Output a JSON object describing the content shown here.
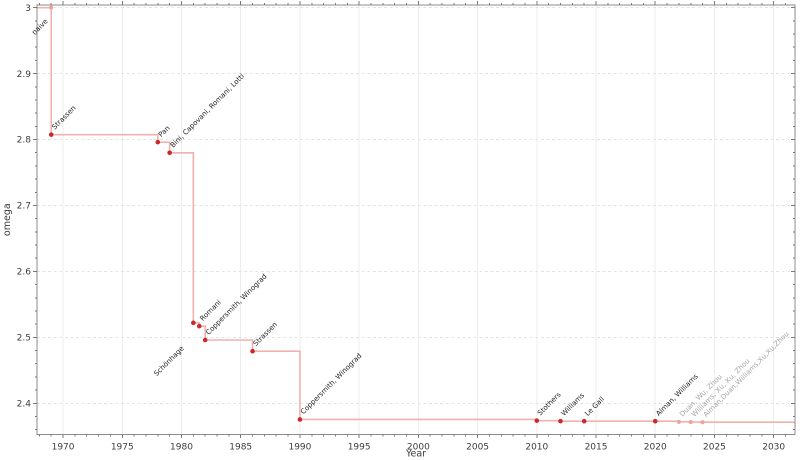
{
  "chart_data": {
    "type": "line",
    "step_style": "post",
    "title": "",
    "xlabel": "Year",
    "ylabel": "omega",
    "xlim": [
      1967.8,
      2031.8
    ],
    "ylim": [
      2.353,
      3.004
    ],
    "x_major_ticks": [
      1970,
      1975,
      1980,
      1985,
      1990,
      1995,
      2000,
      2005,
      2010,
      2015,
      2020,
      2025,
      2030
    ],
    "x_minor_step": 1,
    "y_major_ticks": [
      {
        "value": 2.4,
        "label": "2.4"
      },
      {
        "value": 2.5,
        "label": "2.5"
      },
      {
        "value": 2.6,
        "label": "2.6"
      },
      {
        "value": 2.7,
        "label": "2.7"
      },
      {
        "value": 2.8,
        "label": "2.8"
      },
      {
        "value": 2.9,
        "label": "2.9"
      },
      {
        "value": 3.0,
        "label": "3"
      }
    ],
    "y_minor_step": 0.02,
    "grid": {
      "vertical_style": "solid",
      "horizontal_style": "dashed"
    },
    "legend": "none",
    "colors": {
      "line": "#f2b1b1",
      "marker": "#cc2828",
      "muted_marker": "#eda2a2",
      "label": "#262626",
      "muted_label": "#a6a6a6",
      "grid_vertical": "#ededed",
      "grid_horizontal": "#e3e3e3",
      "spine": "#8c8c8c",
      "tick": "#7a7a7a",
      "tick_label": "#3c3c3c"
    },
    "points": [
      {
        "label": "naive",
        "year": 1969,
        "omega": 3.0,
        "muted_marker": true,
        "label_below": true,
        "label_offset": [
          -3,
          14
        ]
      },
      {
        "label": "Strassen",
        "year": 1969,
        "omega": 2.8074
      },
      {
        "label": "Pan",
        "year": 1978,
        "omega": 2.796
      },
      {
        "label": "Bini, Capovani, Romani, Lotti",
        "year": 1979,
        "omega": 2.7799
      },
      {
        "label": "Schönhage",
        "year": 1981,
        "omega": 2.522,
        "label_below": true,
        "label_offset": [
          -9,
          26
        ]
      },
      {
        "label": "Romani",
        "year": 1981.5,
        "omega": 2.517
      },
      {
        "label": "Coppersmith, Winograd",
        "year": 1982,
        "omega": 2.496
      },
      {
        "label": "Strassen",
        "year": 1986,
        "omega": 2.479
      },
      {
        "label": "Coppersmith, Winograd",
        "year": 1990,
        "omega": 2.3755
      },
      {
        "label": "Stothers",
        "year": 2010,
        "omega": 2.3737
      },
      {
        "label": "Williams",
        "year": 2012,
        "omega": 2.3729
      },
      {
        "label": "Le Gall",
        "year": 2014,
        "omega": 2.3728639
      },
      {
        "label": "Alman, Williams",
        "year": 2020,
        "omega": 2.3728596
      },
      {
        "label": "Duan, Wu, Zhou",
        "year": 2022,
        "omega": 2.371866,
        "muted_marker": true,
        "muted_label": true
      },
      {
        "label": "Williams, Xu, Xu, Zhou",
        "year": 2023,
        "omega": 2.371552,
        "muted_marker": true,
        "muted_label": true
      },
      {
        "label": "Alman,Duan,Williams,Xu,Xu,Zhou",
        "year": 2024,
        "omega": 2.371339,
        "muted_marker": true,
        "muted_label": true
      }
    ]
  }
}
